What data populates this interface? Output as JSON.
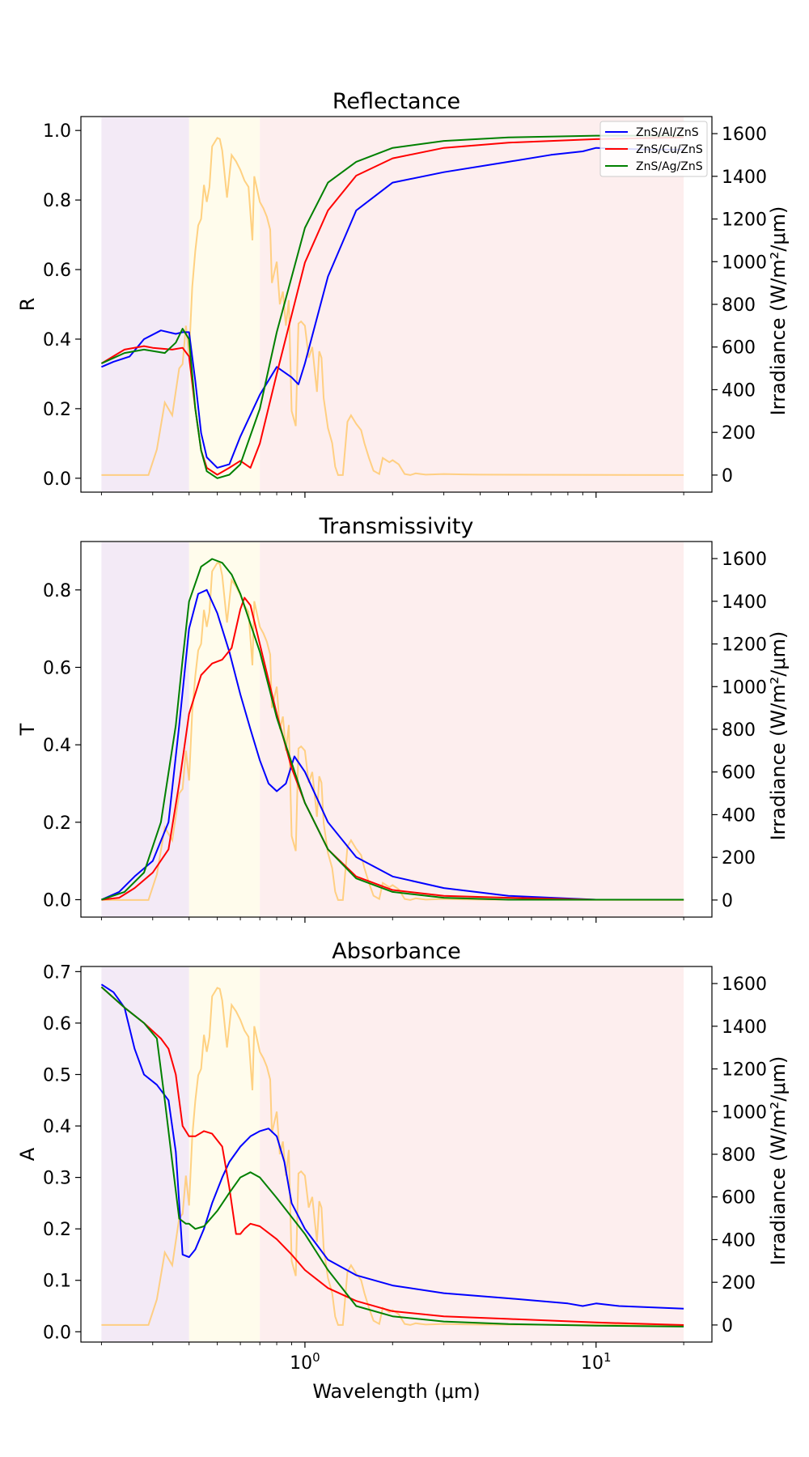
{
  "chart_data": {
    "type": "line",
    "xlabel": "Wavelength (μm)",
    "xscale": "log",
    "xlim": [
      0.17,
      25
    ],
    "x_tick_labels": [
      "10^0",
      "10^1"
    ],
    "x_ticks": [
      1,
      10
    ],
    "right_ylabel": "Irradiance (W/m²/μm)",
    "right_ylim": [
      -80,
      1680
    ],
    "right_ticks": [
      0,
      200,
      400,
      600,
      800,
      1000,
      1200,
      1400,
      1600
    ],
    "legend": {
      "position": "top-right",
      "entries": [
        "ZnS/Al/ZnS",
        "ZnS/Cu/ZnS",
        "ZnS/Ag/ZnS"
      ]
    },
    "colors": {
      "ZnS/Al/ZnS": "#0000ff",
      "ZnS/Cu/ZnS": "#ff0000",
      "ZnS/Ag/ZnS": "#008000",
      "irradiance": "#ffc96e"
    },
    "bands": [
      {
        "range": [
          0.2,
          0.4
        ],
        "color": "#f3eaf6"
      },
      {
        "range": [
          0.4,
          0.7
        ],
        "color": "#fffcec"
      },
      {
        "range": [
          0.7,
          20
        ],
        "color": "#fdeeee"
      }
    ],
    "irradiance": {
      "x": [
        0.2,
        0.29,
        0.31,
        0.33,
        0.35,
        0.37,
        0.38,
        0.39,
        0.4,
        0.41,
        0.42,
        0.43,
        0.44,
        0.45,
        0.46,
        0.47,
        0.48,
        0.5,
        0.51,
        0.52,
        0.54,
        0.56,
        0.58,
        0.6,
        0.62,
        0.64,
        0.66,
        0.67,
        0.7,
        0.72,
        0.74,
        0.76,
        0.77,
        0.8,
        0.82,
        0.84,
        0.86,
        0.88,
        0.9,
        0.93,
        0.95,
        0.97,
        1.0,
        1.03,
        1.06,
        1.1,
        1.12,
        1.14,
        1.16,
        1.2,
        1.24,
        1.27,
        1.3,
        1.35,
        1.4,
        1.44,
        1.5,
        1.56,
        1.6,
        1.66,
        1.72,
        1.8,
        1.85,
        1.95,
        2.0,
        2.1,
        2.2,
        2.3,
        2.4,
        2.5,
        2.6,
        3.0,
        3.5,
        4.0,
        20.0
      ],
      "y": [
        0,
        0,
        120,
        340,
        280,
        500,
        520,
        700,
        560,
        880,
        1050,
        1170,
        1200,
        1360,
        1280,
        1350,
        1540,
        1580,
        1575,
        1520,
        1300,
        1500,
        1470,
        1430,
        1380,
        1350,
        1100,
        1400,
        1280,
        1250,
        1210,
        1150,
        900,
        1000,
        800,
        860,
        700,
        820,
        300,
        230,
        710,
        720,
        700,
        550,
        600,
        390,
        580,
        550,
        360,
        220,
        150,
        40,
        0,
        0,
        250,
        280,
        240,
        210,
        150,
        80,
        20,
        5,
        80,
        60,
        70,
        50,
        5,
        0,
        8,
        5,
        2,
        5,
        3,
        2,
        0
      ]
    },
    "panels": [
      {
        "title": "Reflectance",
        "ylabel": "R",
        "ylim": [
          -0.04,
          1.04
        ],
        "yticks": [
          0.0,
          0.2,
          0.4,
          0.6,
          0.8,
          1.0
        ],
        "ytick_labels": [
          "0.0",
          "0.2",
          "0.4",
          "0.6",
          "0.8",
          "1.0"
        ],
        "series": [
          {
            "name": "ZnS/Al/ZnS",
            "x": [
              0.2,
              0.22,
              0.25,
              0.28,
              0.32,
              0.36,
              0.38,
              0.4,
              0.42,
              0.44,
              0.46,
              0.5,
              0.55,
              0.6,
              0.7,
              0.8,
              0.9,
              0.95,
              1.0,
              1.2,
              1.5,
              2.0,
              3.0,
              5.0,
              7.0,
              9.0,
              10.0,
              15.0,
              20.0
            ],
            "y": [
              0.32,
              0.335,
              0.35,
              0.4,
              0.425,
              0.415,
              0.42,
              0.42,
              0.28,
              0.13,
              0.06,
              0.03,
              0.04,
              0.12,
              0.24,
              0.32,
              0.29,
              0.27,
              0.33,
              0.58,
              0.77,
              0.85,
              0.88,
              0.91,
              0.93,
              0.94,
              0.95,
              0.945,
              0.945
            ]
          },
          {
            "name": "ZnS/Cu/ZnS",
            "x": [
              0.2,
              0.24,
              0.28,
              0.3,
              0.35,
              0.38,
              0.4,
              0.42,
              0.44,
              0.46,
              0.5,
              0.55,
              0.6,
              0.65,
              0.7,
              0.8,
              1.0,
              1.2,
              1.5,
              2.0,
              3.0,
              5.0,
              10.0,
              20.0
            ],
            "y": [
              0.33,
              0.37,
              0.38,
              0.375,
              0.37,
              0.375,
              0.35,
              0.2,
              0.08,
              0.03,
              0.01,
              0.03,
              0.05,
              0.03,
              0.1,
              0.3,
              0.62,
              0.77,
              0.87,
              0.92,
              0.95,
              0.965,
              0.975,
              0.98
            ]
          },
          {
            "name": "ZnS/Ag/ZnS",
            "x": [
              0.2,
              0.24,
              0.28,
              0.33,
              0.36,
              0.38,
              0.4,
              0.42,
              0.44,
              0.46,
              0.5,
              0.55,
              0.6,
              0.7,
              0.8,
              1.0,
              1.2,
              1.5,
              2.0,
              3.0,
              5.0,
              10.0,
              20.0
            ],
            "y": [
              0.33,
              0.36,
              0.37,
              0.36,
              0.39,
              0.43,
              0.4,
              0.2,
              0.08,
              0.02,
              0.0,
              0.01,
              0.04,
              0.2,
              0.42,
              0.72,
              0.85,
              0.91,
              0.95,
              0.97,
              0.98,
              0.985,
              0.985
            ]
          }
        ]
      },
      {
        "title": "Transmissivity",
        "ylabel": "T",
        "ylim": [
          -0.045,
          0.925
        ],
        "yticks": [
          0.0,
          0.2,
          0.4,
          0.6,
          0.8
        ],
        "ytick_labels": [
          "0.0",
          "0.2",
          "0.4",
          "0.6",
          "0.8"
        ],
        "series": [
          {
            "name": "ZnS/Al/ZnS",
            "x": [
              0.2,
              0.23,
              0.26,
              0.3,
              0.34,
              0.37,
              0.4,
              0.43,
              0.46,
              0.5,
              0.55,
              0.6,
              0.65,
              0.7,
              0.75,
              0.8,
              0.86,
              0.92,
              1.0,
              1.2,
              1.5,
              2.0,
              3.0,
              5.0,
              10.0,
              20.0
            ],
            "y": [
              0.0,
              0.02,
              0.06,
              0.1,
              0.2,
              0.45,
              0.7,
              0.79,
              0.8,
              0.74,
              0.64,
              0.53,
              0.44,
              0.36,
              0.3,
              0.28,
              0.3,
              0.37,
              0.33,
              0.2,
              0.11,
              0.06,
              0.03,
              0.01,
              0.0,
              0.0
            ]
          },
          {
            "name": "ZnS/Cu/ZnS",
            "x": [
              0.2,
              0.23,
              0.26,
              0.3,
              0.34,
              0.37,
              0.4,
              0.44,
              0.48,
              0.52,
              0.56,
              0.6,
              0.62,
              0.65,
              0.7,
              0.8,
              0.9,
              1.0,
              1.2,
              1.5,
              2.0,
              3.0,
              5.0,
              10.0,
              20.0
            ],
            "y": [
              0.0,
              0.005,
              0.03,
              0.07,
              0.13,
              0.3,
              0.48,
              0.58,
              0.61,
              0.62,
              0.65,
              0.75,
              0.78,
              0.76,
              0.66,
              0.48,
              0.34,
              0.25,
              0.13,
              0.06,
              0.025,
              0.01,
              0.005,
              0.0,
              0.0
            ]
          },
          {
            "name": "ZnS/Ag/ZnS",
            "x": [
              0.2,
              0.24,
              0.28,
              0.32,
              0.36,
              0.38,
              0.4,
              0.44,
              0.48,
              0.52,
              0.56,
              0.6,
              0.7,
              0.8,
              1.0,
              1.2,
              1.5,
              2.0,
              3.0,
              5.0,
              10.0,
              20.0
            ],
            "y": [
              0.0,
              0.02,
              0.07,
              0.2,
              0.45,
              0.62,
              0.77,
              0.86,
              0.88,
              0.87,
              0.84,
              0.79,
              0.64,
              0.47,
              0.25,
              0.13,
              0.055,
              0.02,
              0.005,
              0.0,
              0.0,
              0.0
            ]
          }
        ]
      },
      {
        "title": "Absorbance",
        "ylabel": "A",
        "ylim": [
          -0.02,
          0.71
        ],
        "yticks": [
          0.0,
          0.1,
          0.2,
          0.3,
          0.4,
          0.5,
          0.6,
          0.7
        ],
        "ytick_labels": [
          "0.0",
          "0.1",
          "0.2",
          "0.3",
          "0.4",
          "0.5",
          "0.6",
          "0.7"
        ],
        "series": [
          {
            "name": "ZnS/Al/ZnS",
            "x": [
              0.2,
              0.22,
              0.24,
              0.26,
              0.28,
              0.31,
              0.34,
              0.36,
              0.38,
              0.4,
              0.42,
              0.45,
              0.48,
              0.52,
              0.55,
              0.6,
              0.65,
              0.7,
              0.75,
              0.8,
              0.85,
              0.9,
              1.0,
              1.2,
              1.5,
              2.0,
              3.0,
              5.0,
              8.0,
              9.0,
              10.0,
              12.0,
              20.0
            ],
            "y": [
              0.675,
              0.66,
              0.63,
              0.55,
              0.5,
              0.48,
              0.45,
              0.35,
              0.15,
              0.145,
              0.16,
              0.2,
              0.25,
              0.3,
              0.33,
              0.36,
              0.38,
              0.39,
              0.395,
              0.38,
              0.33,
              0.25,
              0.2,
              0.14,
              0.11,
              0.09,
              0.075,
              0.065,
              0.055,
              0.05,
              0.055,
              0.05,
              0.045
            ]
          },
          {
            "name": "ZnS/Cu/ZnS",
            "x": [
              0.2,
              0.24,
              0.28,
              0.32,
              0.34,
              0.36,
              0.38,
              0.4,
              0.42,
              0.45,
              0.48,
              0.52,
              0.55,
              0.58,
              0.6,
              0.62,
              0.65,
              0.7,
              0.8,
              0.9,
              1.0,
              1.2,
              1.5,
              2.0,
              3.0,
              5.0,
              10.0,
              20.0
            ],
            "y": [
              0.67,
              0.63,
              0.6,
              0.57,
              0.55,
              0.5,
              0.4,
              0.38,
              0.38,
              0.39,
              0.385,
              0.36,
              0.28,
              0.19,
              0.19,
              0.2,
              0.21,
              0.205,
              0.18,
              0.15,
              0.12,
              0.085,
              0.06,
              0.04,
              0.03,
              0.025,
              0.018,
              0.013
            ]
          },
          {
            "name": "ZnS/Ag/ZnS",
            "x": [
              0.2,
              0.24,
              0.28,
              0.31,
              0.33,
              0.35,
              0.37,
              0.39,
              0.4,
              0.42,
              0.45,
              0.5,
              0.55,
              0.6,
              0.65,
              0.7,
              0.8,
              1.0,
              1.2,
              1.5,
              2.0,
              3.0,
              5.0,
              10.0,
              20.0
            ],
            "y": [
              0.67,
              0.63,
              0.6,
              0.57,
              0.45,
              0.33,
              0.22,
              0.21,
              0.21,
              0.2,
              0.205,
              0.235,
              0.27,
              0.3,
              0.31,
              0.3,
              0.26,
              0.19,
              0.12,
              0.05,
              0.03,
              0.02,
              0.015,
              0.012,
              0.01
            ]
          }
        ]
      }
    ]
  }
}
